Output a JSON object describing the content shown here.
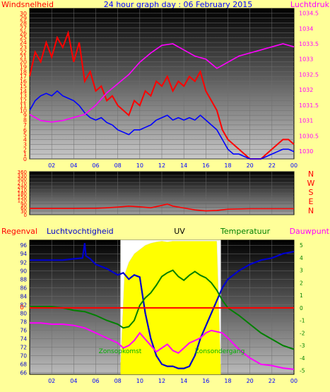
{
  "chart_data": [
    {
      "type": "line",
      "title": "24 hour graph day : 06 February 2015",
      "ylabel_left": "Windsnelheid",
      "ylabel_right": "Luchtdruk",
      "x_tick_labels": [
        "02",
        "04",
        "06",
        "08",
        "10",
        "12",
        "14",
        "16",
        "18",
        "20",
        "22",
        "00"
      ],
      "x_range": [
        0,
        24
      ],
      "y_left_range": [
        0,
        31
      ],
      "y_left_ticks": [
        "0",
        "1",
        "2",
        "3",
        "4",
        "5",
        "6",
        "7",
        "8",
        "9",
        "10",
        "11",
        "12",
        "13",
        "14",
        "15",
        "16",
        "17",
        "18",
        "19",
        "20",
        "21",
        "22",
        "23",
        "24",
        "25",
        "26",
        "27",
        "28",
        "29",
        "30"
      ],
      "y_right_range": [
        1029.75,
        1034.65
      ],
      "y_right_ticks": [
        "1030",
        "1030.5",
        "1031",
        "1031.5",
        "1032",
        "1032.5",
        "1033",
        "1033.5",
        "1034",
        "1034.5"
      ],
      "grid": true,
      "colors": {
        "wind_gust": "#ff0000",
        "wind_avg": "#0000ff",
        "pressure": "#ff00ff"
      },
      "series": [
        {
          "key": "wind_gust",
          "x": [
            0,
            0.5,
            1,
            1.5,
            2,
            2.5,
            3,
            3.5,
            4,
            4.5,
            5,
            5.5,
            6,
            6.5,
            7,
            7.5,
            8,
            8.5,
            9,
            9.5,
            10,
            10.5,
            11,
            11.5,
            12,
            12.5,
            13,
            13.5,
            14,
            14.5,
            15,
            15.5,
            16,
            16.5,
            17,
            17.5,
            18,
            18.5,
            19,
            19.5,
            20,
            20.5,
            21,
            21.5,
            22,
            22.5,
            23,
            23.5,
            24
          ],
          "y": [
            17,
            22,
            20,
            24,
            21,
            25,
            23,
            26,
            20,
            24,
            16,
            18,
            14,
            15,
            12,
            13,
            11,
            10,
            9,
            12,
            11,
            14,
            13,
            16,
            15,
            17,
            14,
            16,
            15,
            17,
            16,
            18,
            14,
            12,
            10,
            6,
            4,
            3,
            2,
            1,
            0,
            0,
            0,
            1,
            2,
            3,
            4,
            4,
            3
          ]
        },
        {
          "key": "wind_avg",
          "x": [
            0,
            0.5,
            1,
            1.5,
            2,
            2.5,
            3,
            3.5,
            4,
            4.5,
            5,
            5.5,
            6,
            6.5,
            7,
            7.5,
            8,
            8.5,
            9,
            9.5,
            10,
            10.5,
            11,
            11.5,
            12,
            12.5,
            13,
            13.5,
            14,
            14.5,
            15,
            15.5,
            16,
            16.5,
            17,
            17.5,
            18,
            18.5,
            19,
            19.5,
            20,
            20.5,
            21,
            21.5,
            22,
            22.5,
            23,
            23.5,
            24
          ],
          "y": [
            10,
            12,
            13,
            13.5,
            13,
            14,
            13,
            12.5,
            12,
            11,
            9.5,
            8.5,
            8,
            8.5,
            7.5,
            7,
            6,
            5.5,
            5,
            6,
            6,
            6.5,
            7,
            8,
            8.5,
            9,
            8,
            8.5,
            8,
            8.5,
            8,
            9,
            8,
            7,
            6,
            4,
            2,
            1,
            1,
            0.5,
            0,
            0,
            0,
            0.5,
            1,
            1.5,
            2,
            2,
            1.5
          ]
        },
        {
          "key": "pressure",
          "x": [
            0,
            1,
            2,
            3,
            4,
            5,
            6,
            7,
            8,
            9,
            10,
            11,
            12,
            13,
            14,
            15,
            16,
            17,
            18,
            19,
            20,
            21,
            22,
            23,
            24
          ],
          "y": [
            1031.2,
            1031.0,
            1030.95,
            1031.0,
            1031.1,
            1031.2,
            1031.5,
            1031.9,
            1032.2,
            1032.5,
            1032.9,
            1033.2,
            1033.45,
            1033.5,
            1033.3,
            1033.1,
            1033.0,
            1032.7,
            1032.9,
            1033.1,
            1033.2,
            1033.3,
            1033.4,
            1033.5,
            1033.4
          ]
        }
      ]
    },
    {
      "type": "line",
      "ylabel_right_compass": [
        "N",
        "W",
        "S",
        "E",
        "N"
      ],
      "x_range": [
        0,
        24
      ],
      "y_range": [
        0,
        360
      ],
      "y_ticks": [
        "0",
        "30",
        "60",
        "90",
        "120",
        "150",
        "180",
        "210",
        "240",
        "270",
        "300",
        "330",
        "360"
      ],
      "grid": true,
      "colors": {
        "direction": "#ff0000"
      },
      "series": [
        {
          "key": "direction",
          "x": [
            0,
            2,
            4,
            6,
            7,
            8,
            9,
            10,
            11,
            12,
            12.5,
            13,
            14,
            15,
            16,
            17,
            18,
            20,
            22,
            24
          ],
          "y": [
            52,
            52,
            52,
            54,
            58,
            64,
            72,
            66,
            58,
            78,
            90,
            72,
            56,
            40,
            32,
            36,
            46,
            50,
            50,
            50
          ]
        }
      ]
    },
    {
      "type": "line",
      "legend": [
        "Regenval",
        "Luchtvochtigheid",
        "UV",
        "Temperatuur",
        "Dauwpunt"
      ],
      "annotations": [
        "Zonsopkomst",
        "Zonsondergang"
      ],
      "x_tick_labels": [
        "02",
        "04",
        "06",
        "08",
        "10",
        "12",
        "14",
        "16",
        "18",
        "20",
        "22",
        "00"
      ],
      "x_range": [
        0,
        24
      ],
      "y_left_range": [
        65.6,
        97.2
      ],
      "y_left_ticks": [
        "66",
        "68",
        "70",
        "72",
        "74",
        "76",
        "78",
        "80",
        "82",
        "84",
        "86",
        "88",
        "90",
        "92",
        "94",
        "96"
      ],
      "y_right_range": [
        -5.3,
        5.4
      ],
      "y_right_ticks": [
        "-5",
        "-4",
        "-3",
        "-2",
        "-1",
        "0",
        "1",
        "2",
        "3",
        "4",
        "5"
      ],
      "rain_axis_label": "0",
      "sunrise_hour": 8.25,
      "sunset_hour": 17.35,
      "grid": true,
      "colors": {
        "humidity": "#0000cc",
        "temperature": "#008000",
        "dewpoint": "#ff00ff",
        "rain": "#ff0000",
        "uv": "#ffff00",
        "daylight": "#ffff00"
      },
      "series": [
        {
          "key": "humidity",
          "x": [
            0,
            1,
            2,
            3,
            4,
            4.8,
            5,
            5.1,
            5.5,
            6,
            7,
            8,
            8.5,
            9,
            9.5,
            10,
            10.5,
            11,
            11.5,
            12,
            12.5,
            13,
            13.5,
            14,
            14.5,
            15,
            15.5,
            16,
            16.5,
            17,
            17.5,
            18,
            19,
            20,
            21,
            22,
            23,
            24
          ],
          "y": [
            92.5,
            92.5,
            92.5,
            92.5,
            92.8,
            93,
            96.5,
            93.5,
            92.8,
            91.5,
            90.5,
            89,
            89.5,
            88,
            89,
            88.5,
            80,
            74,
            70,
            68,
            67.5,
            67.5,
            67,
            67,
            67.5,
            70,
            74,
            77,
            80,
            83,
            86,
            88,
            90,
            91.5,
            92.5,
            93,
            94,
            94.5
          ]
        },
        {
          "key": "temperature",
          "x": [
            0,
            1,
            2,
            3,
            4,
            5,
            6,
            7,
            8,
            8.5,
            9,
            9.5,
            10,
            10.5,
            11,
            11.5,
            12,
            12.5,
            13,
            13.5,
            14,
            14.5,
            15,
            15.5,
            16,
            16.5,
            17,
            17.5,
            18,
            19,
            20,
            21,
            22,
            23,
            24
          ],
          "y": [
            0.1,
            0.1,
            0.1,
            0.0,
            -0.2,
            -0.3,
            -0.6,
            -1.0,
            -1.3,
            -1.6,
            -1.5,
            -1.0,
            0.2,
            0.8,
            1.2,
            1.8,
            2.5,
            2.8,
            3.0,
            2.5,
            2.2,
            2.6,
            2.9,
            2.6,
            2.4,
            2.0,
            1.4,
            0.6,
            0.0,
            -0.6,
            -1.3,
            -2.0,
            -2.5,
            -3.0,
            -3.3
          ]
        },
        {
          "key": "dewpoint",
          "x": [
            0,
            1,
            2,
            3,
            4,
            5,
            6,
            7,
            8,
            8.5,
            9,
            9.5,
            10,
            10.5,
            11,
            11.5,
            12,
            12.5,
            13,
            13.5,
            14,
            14.5,
            15,
            15.5,
            16,
            16.5,
            17,
            17.5,
            18,
            19,
            20,
            21,
            22,
            23,
            24
          ],
          "y": [
            -1.2,
            -1.2,
            -1.3,
            -1.3,
            -1.4,
            -1.6,
            -2.0,
            -2.4,
            -2.8,
            -3.2,
            -3.0,
            -2.6,
            -2.0,
            -2.5,
            -3.0,
            -3.5,
            -3.2,
            -2.9,
            -3.4,
            -3.6,
            -3.2,
            -2.8,
            -2.6,
            -2.4,
            -2.0,
            -1.8,
            -1.9,
            -2.0,
            -2.4,
            -3.3,
            -4.0,
            -4.5,
            -4.6,
            -4.8,
            -4.9
          ]
        },
        {
          "key": "uv",
          "x": [
            8.25,
            8.6,
            9,
            9.5,
            10,
            10.5,
            11,
            11.5,
            12,
            12.5,
            13,
            14,
            15,
            16,
            17,
            17.35
          ],
          "y": [
            68.5,
            89,
            92,
            94,
            95,
            96,
            96.5,
            96.8,
            97,
            96.8,
            97,
            97,
            97,
            97,
            97,
            68
          ]
        },
        {
          "key": "rain",
          "x": [
            0,
            24
          ],
          "y": [
            0,
            0
          ]
        }
      ]
    }
  ]
}
